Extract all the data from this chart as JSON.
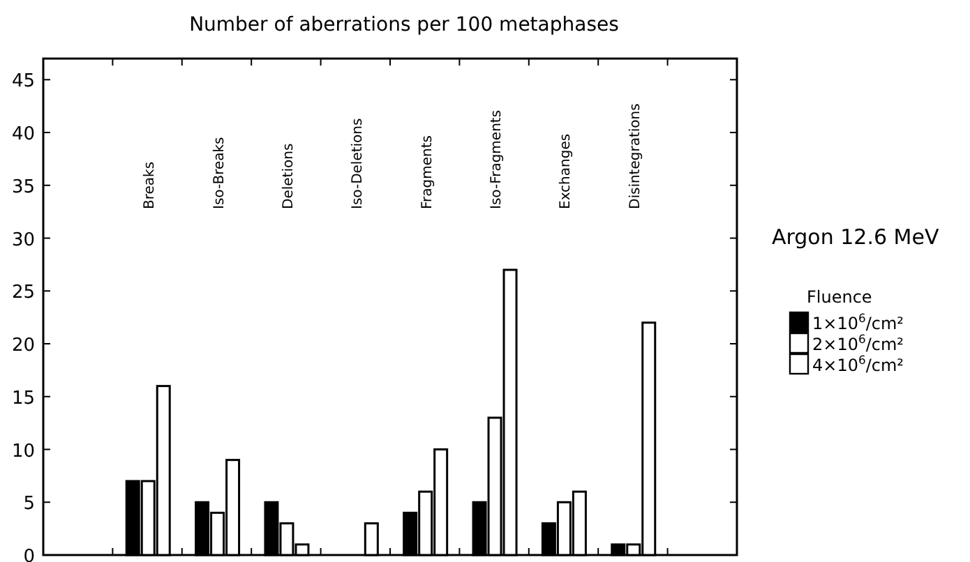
{
  "chart_data": {
    "type": "bar",
    "title": "Number of aberrations per 100 metaphases",
    "categories": [
      "Breaks",
      "Iso-Breaks",
      "Deletions",
      "Iso-Deletions",
      "Fragments",
      "Iso-Fragments",
      "Exchanges",
      "Disintegrations"
    ],
    "series": [
      {
        "name": "1×10$^{6}$/cm²",
        "color": "#000000",
        "values": [
          7,
          5,
          5,
          0,
          4,
          5,
          3,
          1
        ]
      },
      {
        "name": "2×10$^{6}$/cm²",
        "color": "#ffffff",
        "values": [
          7,
          4,
          3,
          0,
          6,
          13,
          5,
          1
        ]
      },
      {
        "name": "4×10$^{6}$/cm²",
        "color": "#ffffff",
        "values": [
          16,
          9,
          1,
          3,
          10,
          27,
          6,
          22
        ]
      }
    ],
    "ylim": [
      0,
      47
    ],
    "yticks": [
      0,
      5,
      10,
      15,
      20,
      25,
      30,
      35,
      40,
      45
    ],
    "legend": "right",
    "legend_title": "Fluence",
    "annotations": [
      "Argon 12.6 MeV"
    ],
    "grid": false
  }
}
